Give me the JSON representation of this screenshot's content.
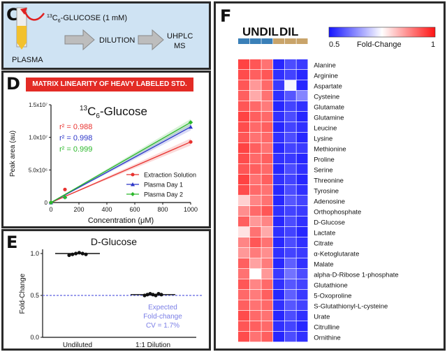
{
  "panel_c": {
    "letter": "C",
    "isotope_mass": "13",
    "isotope_sub": "6",
    "tracer_label_pre": "C",
    "tracer_label_post": "-GLUCOSE (1 mM)",
    "plasma_label": "PLASMA",
    "step1": "DILUTION",
    "step2_line1": "UHPLC",
    "step2_line2": "MS"
  },
  "panel_d": {
    "letter": "D",
    "banner": "MATRIX LINEARITY OF HEAVY LABELED STD.",
    "title_sup": "13",
    "title_pre": "C",
    "title_sub": "6",
    "title_post": "-Glucose",
    "r2": [
      {
        "label": "r² = 0.988",
        "color": "#e8322f"
      },
      {
        "label": "r² = 0.998",
        "color": "#2b35c8"
      },
      {
        "label": "r² = 0.999",
        "color": "#2bb82b"
      }
    ]
  },
  "panel_e": {
    "letter": "E"
  },
  "panel_f": {
    "letter": "F",
    "group_undil": "UNDIL",
    "group_dil": "DIL",
    "scale_min": "0.5",
    "scale_label": "Fold-Change",
    "scale_max": "1"
  },
  "chart_data": [
    {
      "type": "scatter",
      "title": "13C6-Glucose",
      "xlabel": "Concentration (μM)",
      "ylabel": "Peak area (au)",
      "xlim": [
        0,
        1000
      ],
      "ylim": [
        0,
        15000000
      ],
      "xticks": [
        "0",
        "200",
        "400",
        "600",
        "800",
        "1000"
      ],
      "yticks": [
        "0",
        "5.0x10⁶",
        "1.0x10⁷",
        "1.5x10⁷"
      ],
      "legend_position": "bottom-right",
      "series": [
        {
          "name": "Extraction Solution",
          "color": "#e8322f",
          "marker": "circle",
          "x": [
            0,
            100,
            1000
          ],
          "y": [
            0,
            2000000,
            9300000
          ]
        },
        {
          "name": "Plasma Day 1",
          "color": "#2b35c8",
          "marker": "triangle",
          "x": [
            0,
            100,
            1000
          ],
          "y": [
            0,
            900000,
            11600000
          ]
        },
        {
          "name": "Plasma Day 2",
          "color": "#2bb82b",
          "marker": "diamond",
          "x": [
            0,
            100,
            1000
          ],
          "y": [
            0,
            800000,
            12300000
          ]
        }
      ]
    },
    {
      "type": "scatter",
      "title": "D-Glucose",
      "ylabel": "Fold-Change",
      "ylim": [
        0,
        1.05
      ],
      "yticks": [
        "0.0",
        "0.5",
        "1.0"
      ],
      "categories": [
        "Undiluted",
        "1:1 Dilution"
      ],
      "means": [
        1.0,
        0.51
      ],
      "points": [
        [
          0.98,
          0.99,
          1.0,
          1.01,
          1.0,
          0.99
        ],
        [
          0.5,
          0.51,
          0.52,
          0.51,
          0.5,
          0.52,
          0.51
        ]
      ],
      "expected_line": 0.5,
      "annotation": [
        "Expected",
        "Fold-change",
        "CV = 1.7%"
      ]
    },
    {
      "type": "heatmap",
      "color_range": [
        0.5,
        1
      ],
      "columns": [
        "UNDIL",
        "UNDIL",
        "UNDIL",
        "DIL",
        "DIL",
        "DIL"
      ],
      "rows": [
        "Alanine",
        "Arginine",
        "Aspartate",
        "Cysteine",
        "Glutamate",
        "Glutamine",
        "Leucine",
        "Lysine",
        "Methionine",
        "Proline",
        "Serine",
        "Threonine",
        "Tyrosine",
        "Adenosine",
        "Orthophosphate",
        "D-Glucose",
        "Lactate",
        "Citrate",
        "α-Ketoglutarate",
        "Malate",
        "alpha-D-Ribose 1-phosphate",
        "Glutathione",
        "5-Oxoproline",
        "S-Glutathionyl-L-cysteine",
        "Urate",
        "Citrulline",
        "Ornithine"
      ],
      "values": [
        [
          0.95,
          0.93,
          0.9,
          0.52,
          0.56,
          0.54
        ],
        [
          0.94,
          0.92,
          0.93,
          0.53,
          0.55,
          0.52
        ],
        [
          0.93,
          0.86,
          0.91,
          0.54,
          0.74,
          0.52
        ],
        [
          0.92,
          0.84,
          0.9,
          0.53,
          0.57,
          0.62
        ],
        [
          0.93,
          0.91,
          0.89,
          0.52,
          0.55,
          0.53
        ],
        [
          0.95,
          0.92,
          0.91,
          0.53,
          0.56,
          0.52
        ],
        [
          0.94,
          0.91,
          0.92,
          0.52,
          0.55,
          0.53
        ],
        [
          0.93,
          0.9,
          0.91,
          0.53,
          0.56,
          0.52
        ],
        [
          0.95,
          0.92,
          0.9,
          0.52,
          0.55,
          0.54
        ],
        [
          0.94,
          0.91,
          0.92,
          0.53,
          0.54,
          0.52
        ],
        [
          0.93,
          0.92,
          0.91,
          0.52,
          0.56,
          0.53
        ],
        [
          0.95,
          0.9,
          0.92,
          0.53,
          0.55,
          0.52
        ],
        [
          0.94,
          0.91,
          0.9,
          0.52,
          0.56,
          0.53
        ],
        [
          0.8,
          0.88,
          0.9,
          0.52,
          0.57,
          0.55
        ],
        [
          0.87,
          0.91,
          0.93,
          0.53,
          0.55,
          0.54
        ],
        [
          0.92,
          0.86,
          0.88,
          0.52,
          0.56,
          0.53
        ],
        [
          0.78,
          0.9,
          0.84,
          0.53,
          0.55,
          0.52
        ],
        [
          0.88,
          0.93,
          0.9,
          0.52,
          0.56,
          0.53
        ],
        [
          0.86,
          0.89,
          0.87,
          0.53,
          0.55,
          0.54
        ],
        [
          0.92,
          0.85,
          0.89,
          0.52,
          0.58,
          0.53
        ],
        [
          0.9,
          0.75,
          0.86,
          0.54,
          0.6,
          0.56
        ],
        [
          0.93,
          0.88,
          0.91,
          0.53,
          0.57,
          0.55
        ],
        [
          0.91,
          0.89,
          0.92,
          0.52,
          0.58,
          0.54
        ],
        [
          0.92,
          0.9,
          0.91,
          0.53,
          0.57,
          0.55
        ],
        [
          0.94,
          0.91,
          0.9,
          0.52,
          0.56,
          0.53
        ],
        [
          0.93,
          0.92,
          0.91,
          0.53,
          0.55,
          0.52
        ],
        [
          0.94,
          0.9,
          0.92,
          0.52,
          0.56,
          0.53
        ]
      ]
    }
  ]
}
